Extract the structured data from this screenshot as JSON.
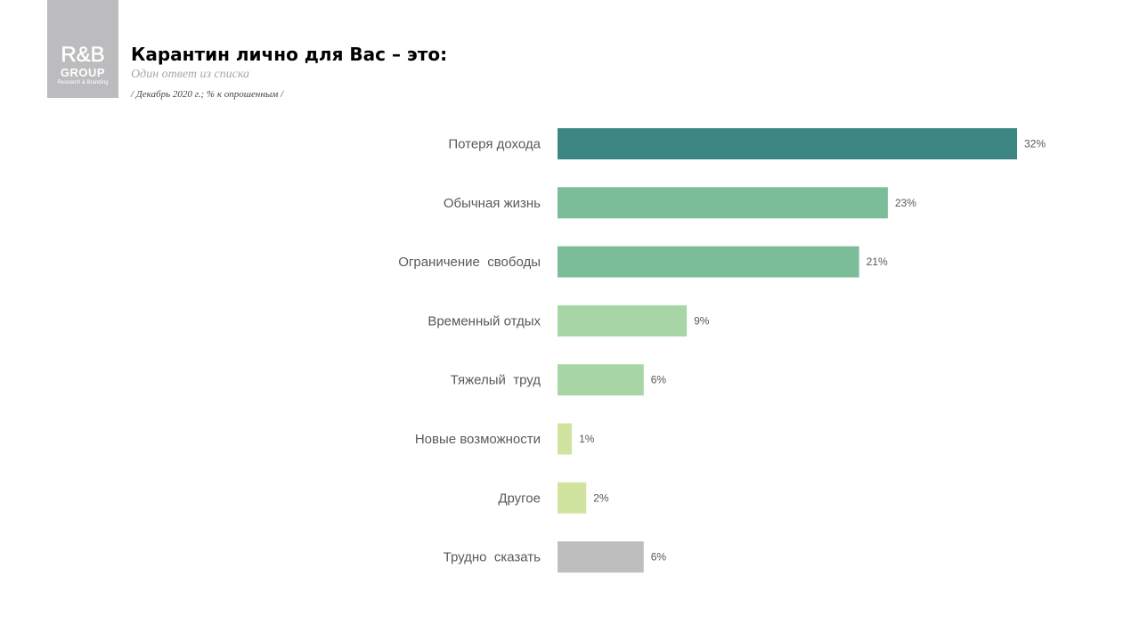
{
  "logo": {
    "mark": "R&B",
    "group": "GROUP",
    "tagline": "Research & Branding"
  },
  "header": {
    "title": "Карантин лично для Вас – это:",
    "subtitle": "Один ответ из списка",
    "note": "/ Декабрь 2020 г.; % к опрошенным /"
  },
  "chart_data": {
    "type": "bar",
    "orientation": "horizontal",
    "categories": [
      "Потеря дохода",
      "Обычная жизнь",
      "Ограничение  свободы",
      "Временный отдых",
      "Тяжелый  труд",
      "Новые возможности",
      "Другое",
      "Трудно  сказать"
    ],
    "values": [
      32,
      23,
      21,
      9,
      6,
      1,
      2,
      6
    ],
    "value_labels": [
      "32%",
      "23%",
      "21%",
      "9%",
      "6%",
      "1%",
      "2%",
      "6%"
    ],
    "colors": [
      "#3b8583",
      "#7bbd98",
      "#7bbd98",
      "#a8d5a6",
      "#a8d5a6",
      "#d1e49f",
      "#d1e49f",
      "#bebebf"
    ],
    "unit": "%",
    "title": "Карантин лично для Вас – это:",
    "xlabel": "",
    "ylabel": "",
    "grid": false
  }
}
